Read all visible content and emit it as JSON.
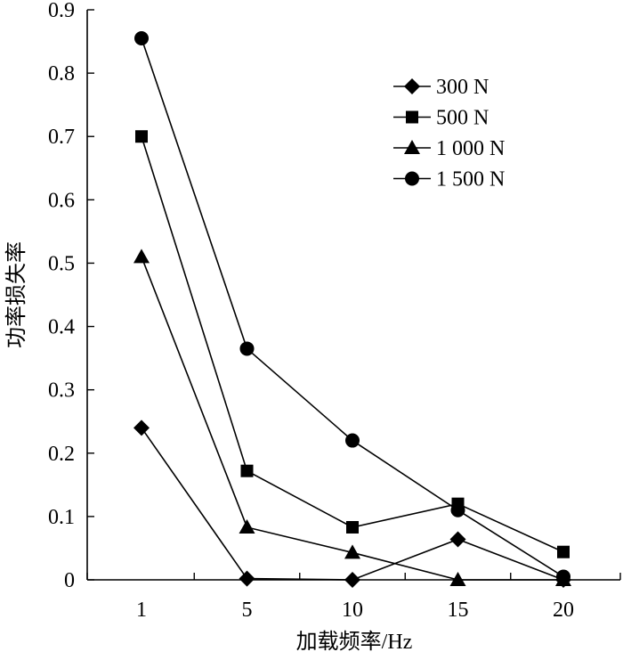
{
  "chart_data": {
    "type": "line",
    "title": "",
    "xlabel": "加载频率/Hz",
    "ylabel": "功率损失率",
    "x": [
      1,
      5,
      10,
      15,
      20
    ],
    "x_tick_labels": [
      "1",
      "5",
      "10",
      "15",
      "20"
    ],
    "ylim": [
      0,
      0.9
    ],
    "y_tick_labels": [
      "0",
      "0.1",
      "0.2",
      "0.3",
      "0.4",
      "0.5",
      "0.6",
      "0.7",
      "0.8",
      "0.9"
    ],
    "grid": false,
    "legend_position": "top-right",
    "series": [
      {
        "name": "300 N",
        "marker": "diamond",
        "values": [
          0.24,
          0.002,
          0.0,
          0.064,
          0.0
        ]
      },
      {
        "name": "500 N",
        "marker": "square",
        "values": [
          0.7,
          0.172,
          0.083,
          0.12,
          0.044
        ]
      },
      {
        "name": "1 000 N",
        "marker": "triangle",
        "values": [
          0.51,
          0.083,
          0.043,
          0.0,
          0.0
        ]
      },
      {
        "name": "1 500 N",
        "marker": "circle",
        "values": [
          0.855,
          0.365,
          0.22,
          0.11,
          0.005
        ]
      }
    ],
    "colors": {
      "line": "#000000",
      "marker": "#000000"
    }
  }
}
